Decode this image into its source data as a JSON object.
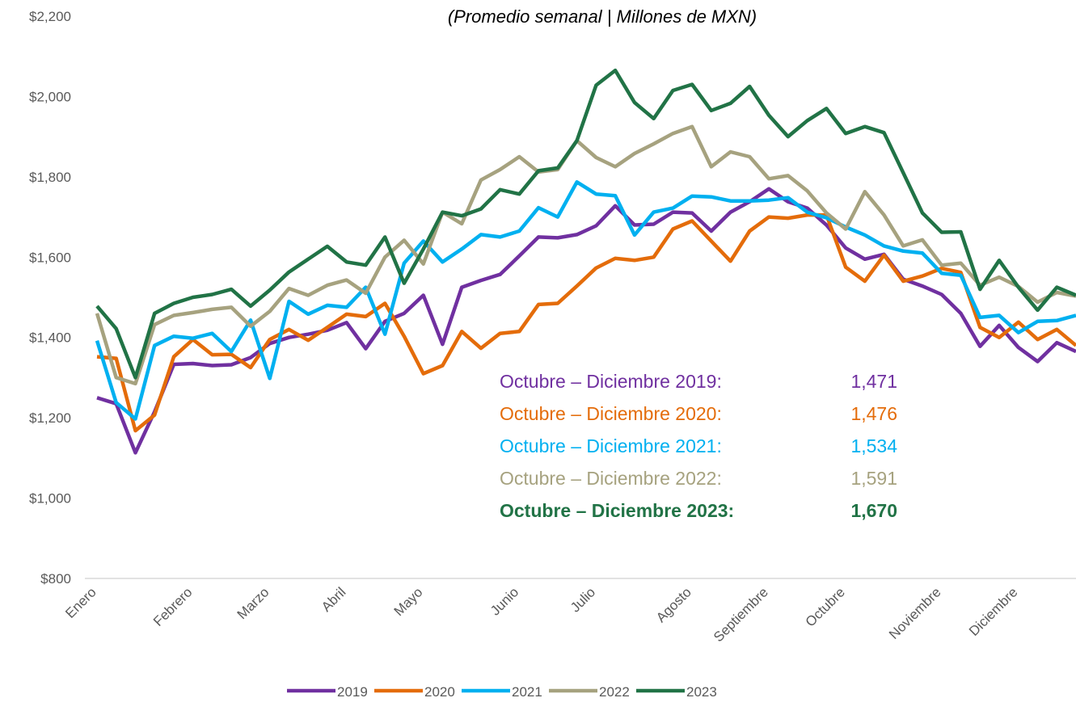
{
  "chart_data": {
    "type": "line",
    "subtitle": "(Promedio semanal | Millones de MXN)",
    "categories": [
      "Enero",
      null,
      null,
      null,
      null,
      "Febrero",
      null,
      null,
      null,
      "Marzo",
      null,
      null,
      null,
      "Abril",
      null,
      null,
      null,
      "Mayo",
      null,
      null,
      null,
      null,
      "Junio",
      null,
      null,
      null,
      "Julio",
      null,
      null,
      null,
      null,
      "Agosto",
      null,
      null,
      null,
      "Septiembre",
      null,
      null,
      null,
      "Octubre",
      null,
      null,
      null,
      null,
      "Noviembre",
      null,
      null,
      null,
      "Diciembre",
      null,
      null,
      null
    ],
    "series": [
      {
        "name": "2019",
        "color": "#7030a0",
        "values": [
          1250,
          1235,
          1113,
          1215,
          1333,
          1335,
          1330,
          1332,
          1350,
          1385,
          1400,
          1408,
          1418,
          1437,
          1372,
          1440,
          1460,
          1505,
          1383,
          1525,
          1542,
          1557,
          1603,
          1650,
          1648,
          1656,
          1678,
          1728,
          1680,
          1682,
          1712,
          1710,
          1665,
          1712,
          1738,
          1770,
          1738,
          1722,
          1680,
          1623,
          1595,
          1607,
          1545,
          1528,
          1507,
          1460,
          1378,
          1430,
          1375,
          1340,
          1387,
          1365
        ]
      },
      {
        "name": "2020",
        "color": "#e46c0a",
        "values": [
          1352,
          1348,
          1168,
          1207,
          1352,
          1395,
          1357,
          1358,
          1325,
          1395,
          1420,
          1393,
          1425,
          1458,
          1452,
          1485,
          1403,
          1310,
          1330,
          1415,
          1373,
          1410,
          1415,
          1482,
          1485,
          1528,
          1573,
          1597,
          1592,
          1600,
          1670,
          1690,
          1640,
          1590,
          1665,
          1700,
          1697,
          1705,
          1705,
          1575,
          1540,
          1605,
          1540,
          1553,
          1572,
          1562,
          1425,
          1400,
          1438,
          1395,
          1420,
          1380
        ]
      },
      {
        "name": "2021",
        "color": "#00b0f0",
        "values": [
          1392,
          1238,
          1197,
          1380,
          1403,
          1398,
          1410,
          1365,
          1443,
          1298,
          1490,
          1458,
          1480,
          1475,
          1525,
          1408,
          1585,
          1640,
          1588,
          1620,
          1656,
          1650,
          1665,
          1723,
          1700,
          1787,
          1757,
          1753,
          1655,
          1712,
          1722,
          1752,
          1750,
          1740,
          1740,
          1742,
          1748,
          1712,
          1698,
          1675,
          1655,
          1628,
          1615,
          1610,
          1560,
          1555,
          1450,
          1455,
          1412,
          1440,
          1442,
          1455
        ]
      },
      {
        "name": "2022",
        "color": "#a6a27f",
        "values": [
          1460,
          1300,
          1285,
          1432,
          1455,
          1462,
          1470,
          1475,
          1428,
          1465,
          1522,
          1505,
          1530,
          1543,
          1510,
          1600,
          1642,
          1583,
          1712,
          1683,
          1792,
          1818,
          1850,
          1812,
          1818,
          1890,
          1848,
          1825,
          1858,
          1882,
          1908,
          1925,
          1825,
          1862,
          1850,
          1795,
          1803,
          1765,
          1710,
          1670,
          1763,
          1705,
          1628,
          1643,
          1580,
          1585,
          1530,
          1550,
          1527,
          1488,
          1512,
          1503
        ]
      },
      {
        "name": "2023",
        "color": "#217346",
        "values": [
          1478,
          1422,
          1300,
          1460,
          1485,
          1500,
          1507,
          1520,
          1478,
          1518,
          1563,
          1595,
          1627,
          1588,
          1580,
          1650,
          1535,
          1620,
          1712,
          1703,
          1720,
          1768,
          1757,
          1815,
          1822,
          1890,
          2028,
          2065,
          1985,
          1945,
          2015,
          2030,
          1965,
          1983,
          2025,
          1953,
          1900,
          1940,
          1970,
          1908,
          1925,
          1910,
          1810,
          1710,
          1662,
          1663,
          1520,
          1592,
          1525,
          1468,
          1525,
          1505
        ]
      }
    ],
    "ylim": [
      800,
      2200
    ],
    "yticks": [
      {
        "value": 800,
        "label": "$800"
      },
      {
        "value": 1000,
        "label": "$1,000"
      },
      {
        "value": 1200,
        "label": "$1,200"
      },
      {
        "value": 1400,
        "label": "$1,400"
      },
      {
        "value": 1600,
        "label": "$1,600"
      },
      {
        "value": 1800,
        "label": "$1,800"
      },
      {
        "value": 2000,
        "label": "$2,000"
      },
      {
        "value": 2200,
        "label": "$2,200"
      }
    ],
    "grid": false,
    "legend": "bottom",
    "annotations": [
      {
        "text": "Octubre – Diciembre 2019:",
        "label": "1,471",
        "color": "#7030a0",
        "bold": false
      },
      {
        "text": "Octubre – Diciembre 2020:",
        "label": "1,476",
        "color": "#e46c0a",
        "bold": false
      },
      {
        "text": "Octubre – Diciembre 2021:",
        "label": "1,534",
        "color": "#00b0f0",
        "bold": false
      },
      {
        "text": "Octubre – Diciembre 2022:",
        "label": "1,591",
        "color": "#a6a27f",
        "bold": false
      },
      {
        "text": "Octubre – Diciembre 2023:",
        "label": "1,670",
        "color": "#217346",
        "bold": true
      }
    ]
  }
}
